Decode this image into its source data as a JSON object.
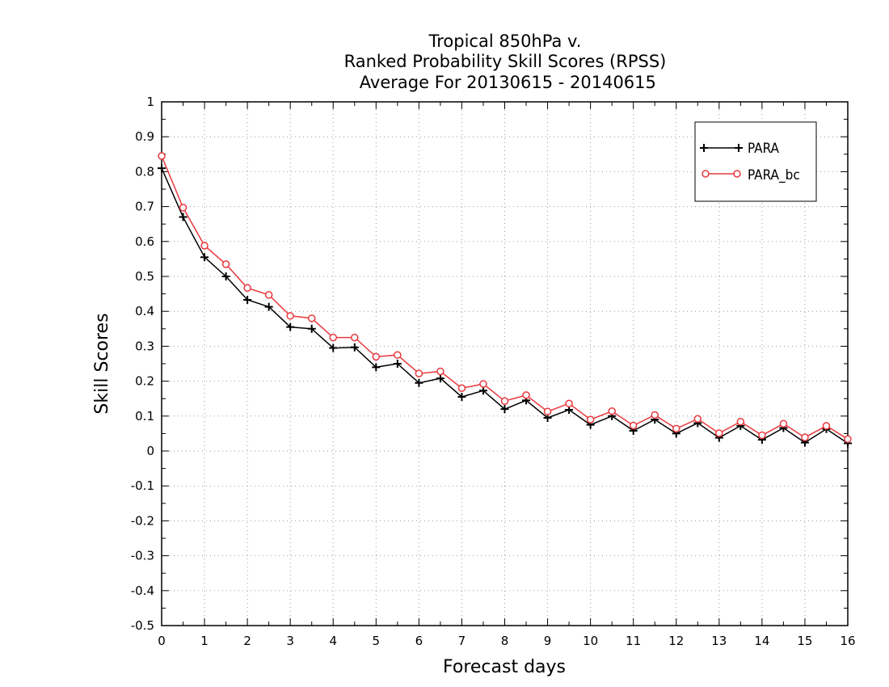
{
  "chart_data": {
    "type": "line",
    "title": [
      "Tropical 850hPa v.",
      "Ranked Probability Skill Scores (RPSS)",
      " Average For 20130615 - 20140615"
    ],
    "xlabel": "Forecast days",
    "ylabel": "Skill Scores",
    "xlim": [
      0,
      16
    ],
    "ylim": [
      -0.5,
      1
    ],
    "xticks": [
      0,
      1,
      2,
      3,
      4,
      5,
      6,
      7,
      8,
      9,
      10,
      11,
      12,
      13,
      14,
      15,
      16
    ],
    "xtick_labels": [
      "0",
      "1",
      "2",
      "3",
      "4",
      "5",
      "6",
      "7",
      "8",
      "9",
      "10",
      "11",
      "12",
      "13",
      "14",
      "15",
      "16"
    ],
    "yticks": [
      -0.5,
      -0.4,
      -0.3,
      -0.2,
      -0.1,
      0,
      0.1,
      0.2,
      0.3,
      0.4,
      0.5,
      0.6,
      0.7,
      0.8,
      0.9,
      1
    ],
    "ytick_labels": [
      "-0.5",
      "-0.4",
      "-0.3",
      "-0.2",
      "-0.1",
      "0",
      "0.1",
      "0.2",
      "0.3",
      "0.4",
      "0.5",
      "0.6",
      "0.7",
      "0.8",
      "0.9",
      "1"
    ],
    "grid": true,
    "legend_position": "top-right",
    "x": [
      0,
      0.5,
      1,
      1.5,
      2,
      2.5,
      3,
      3.5,
      4,
      4.5,
      5,
      5.5,
      6,
      6.5,
      7,
      7.5,
      8,
      8.5,
      9,
      9.5,
      10,
      10.5,
      11,
      11.5,
      12,
      12.5,
      13,
      13.5,
      14,
      14.5,
      15,
      15.5,
      16
    ],
    "series": [
      {
        "name": "PARA",
        "color": "#000000",
        "marker": "plus",
        "values": [
          0.81,
          0.67,
          0.555,
          0.5,
          0.433,
          0.413,
          0.355,
          0.35,
          0.295,
          0.297,
          0.24,
          0.25,
          0.195,
          0.208,
          0.155,
          0.173,
          0.12,
          0.145,
          0.095,
          0.118,
          0.075,
          0.1,
          0.058,
          0.09,
          0.05,
          0.08,
          0.038,
          0.072,
          0.032,
          0.066,
          0.024,
          0.063,
          0.022
        ]
      },
      {
        "name": "PARA_bc",
        "color": "#e8383d",
        "marker": "circle",
        "values": [
          0.845,
          0.697,
          0.588,
          0.535,
          0.467,
          0.447,
          0.387,
          0.38,
          0.325,
          0.325,
          0.27,
          0.275,
          0.222,
          0.228,
          0.18,
          0.192,
          0.143,
          0.16,
          0.113,
          0.136,
          0.09,
          0.114,
          0.073,
          0.103,
          0.064,
          0.092,
          0.051,
          0.084,
          0.045,
          0.078,
          0.039,
          0.072,
          0.034
        ]
      }
    ]
  }
}
